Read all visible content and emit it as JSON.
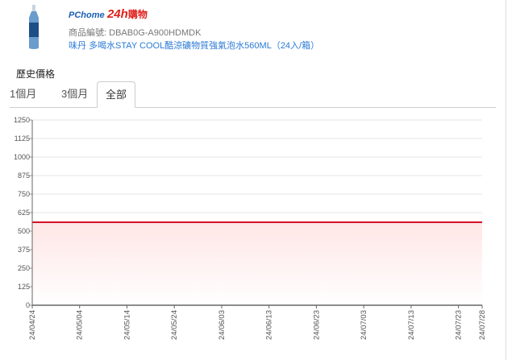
{
  "header": {
    "logo": {
      "brand": "PChome",
      "number": "24h",
      "suffix": "購物"
    },
    "sku_label": "商品編號:",
    "sku": "DBAB0G-A900HDMDK",
    "product_name": "味丹 多喝水STAY COOL酷涼礦物質強氣泡水560ML（24入/箱）"
  },
  "section_title": "歷史價格",
  "tabs": [
    {
      "label": "1個月",
      "active": false
    },
    {
      "label": "3個月",
      "active": false
    },
    {
      "label": "全部",
      "active": true
    }
  ],
  "colors": {
    "line": "#d0021b",
    "fill": "#ffe6e6",
    "grid": "#e6e6e6"
  },
  "chart_data": {
    "type": "area",
    "x": [
      "24/04/24",
      "24/07/28"
    ],
    "values": [
      560,
      560
    ],
    "ylim": [
      0,
      1250
    ],
    "yticks": [
      0,
      125,
      250,
      375,
      500,
      625,
      750,
      875,
      1000,
      1125,
      1250
    ],
    "xticks": [
      "24/04/24",
      "24/05/04",
      "24/05/14",
      "24/05/24",
      "24/06/03",
      "24/06/13",
      "24/06/23",
      "24/07/03",
      "24/07/13",
      "24/07/23",
      "24/07/28"
    ],
    "grid": true,
    "title": "",
    "xlabel": "",
    "ylabel": ""
  }
}
